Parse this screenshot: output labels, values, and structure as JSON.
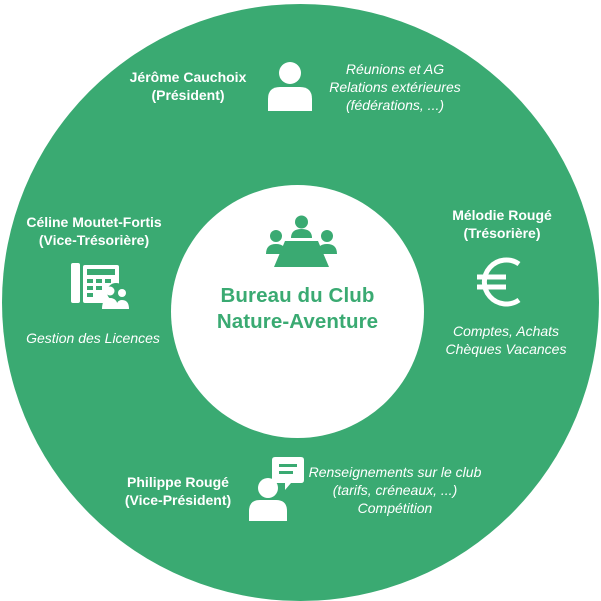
{
  "colors": {
    "ring": "#3aaa72",
    "center": "#ffffff",
    "text_on_ring": "#ffffff",
    "center_text": "#3aaa72"
  },
  "center": {
    "icon": "meeting-table-icon",
    "title_line1": "Bureau du Club",
    "title_line2": "Nature-Aventure"
  },
  "members": {
    "president": {
      "icon": "person-icon",
      "name": "Jérôme Cauchoix",
      "title": "(Président)",
      "tasks": [
        "Réunions et AG",
        "Relations extérieures",
        "(fédérations, ...)"
      ]
    },
    "treasurer": {
      "icon": "euro-icon",
      "name": "Mélodie Rougé",
      "title": "(Trésorière)",
      "tasks": [
        "Comptes, Achats",
        "Chèques Vacances"
      ]
    },
    "vice_treasurer": {
      "icon": "phone-users-icon",
      "name": "Céline Moutet-Fortis",
      "title": "(Vice-Trésorière)",
      "tasks": [
        "Gestion des Licences"
      ]
    },
    "vice_president": {
      "icon": "person-chat-icon",
      "name": "Philippe Rougé",
      "title": "(Vice-Président)",
      "tasks": [
        "Renseignements sur le club",
        "(tarifs, créneaux, ...)",
        "Compétition"
      ]
    }
  }
}
